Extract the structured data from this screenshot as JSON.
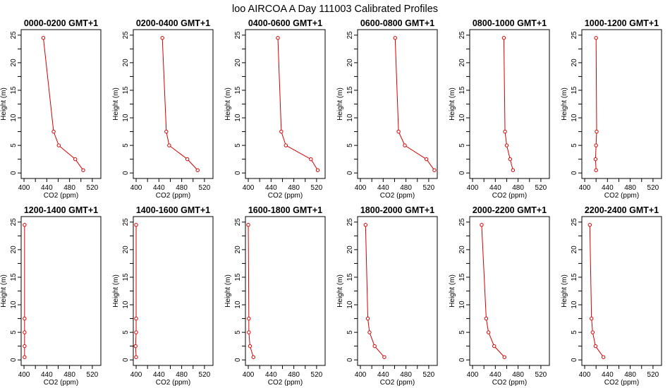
{
  "figure_title": "loo AIRCOA A  Day 111003  Calibrated Profiles",
  "chart_data": [
    {
      "type": "line",
      "title": "0000-0200 GMT+1",
      "xlabel": "CO2 (ppm)",
      "ylabel": "Height (m)",
      "xlim": [
        395,
        535
      ],
      "ylim": [
        -1,
        26
      ],
      "x_ticks": [
        400,
        440,
        480,
        520
      ],
      "y_ticks": [
        0,
        5,
        10,
        15,
        20,
        25
      ],
      "grid": false,
      "color": "#d40000",
      "series": [
        {
          "x": [
            434,
            452,
            461,
            490,
            504
          ],
          "y": [
            24.5,
            7.5,
            5,
            2.5,
            0.5
          ]
        }
      ]
    },
    {
      "type": "line",
      "title": "0200-0400 GMT+1",
      "xlabel": "CO2 (ppm)",
      "ylabel": "Height (m)",
      "xlim": [
        395,
        535
      ],
      "ylim": [
        -1,
        26
      ],
      "x_ticks": [
        400,
        440,
        480,
        520
      ],
      "y_ticks": [
        0,
        5,
        10,
        15,
        20,
        25
      ],
      "grid": false,
      "color": "#d40000",
      "series": [
        {
          "x": [
            446,
            453,
            458,
            490,
            508
          ],
          "y": [
            24.5,
            7.5,
            5,
            2.5,
            0.5
          ]
        }
      ]
    },
    {
      "type": "line",
      "title": "0400-0600 GMT+1",
      "xlabel": "CO2 (ppm)",
      "ylabel": "Height (m)",
      "xlim": [
        395,
        535
      ],
      "ylim": [
        -1,
        26
      ],
      "x_ticks": [
        400,
        440,
        480,
        520
      ],
      "y_ticks": [
        0,
        5,
        10,
        15,
        20,
        25
      ],
      "grid": false,
      "color": "#d40000",
      "series": [
        {
          "x": [
            452,
            458,
            466,
            510,
            522
          ],
          "y": [
            24.5,
            7.5,
            5,
            2.5,
            0.5
          ]
        }
      ]
    },
    {
      "type": "line",
      "title": "0600-0800 GMT+1",
      "xlabel": "CO2 (ppm)",
      "ylabel": "Height (m)",
      "xlim": [
        395,
        535
      ],
      "ylim": [
        -1,
        26
      ],
      "x_ticks": [
        400,
        440,
        480,
        520
      ],
      "y_ticks": [
        0,
        5,
        10,
        15,
        20,
        25
      ],
      "grid": false,
      "color": "#d40000",
      "series": [
        {
          "x": [
            461,
            467,
            478,
            516,
            530
          ],
          "y": [
            24.5,
            7.5,
            5,
            2.5,
            0.5
          ]
        }
      ]
    },
    {
      "type": "line",
      "title": "0800-1000 GMT+1",
      "xlabel": "CO2 (ppm)",
      "ylabel": "Height (m)",
      "xlim": [
        395,
        535
      ],
      "ylim": [
        -1,
        26
      ],
      "x_ticks": [
        400,
        440,
        480,
        520
      ],
      "y_ticks": [
        0,
        5,
        10,
        15,
        20,
        25
      ],
      "grid": false,
      "color": "#d40000",
      "series": [
        {
          "x": [
            455,
            457,
            460,
            466,
            471
          ],
          "y": [
            24.5,
            7.5,
            5,
            2.5,
            0.5
          ]
        }
      ]
    },
    {
      "type": "line",
      "title": "1000-1200 GMT+1",
      "xlabel": "CO2 (ppm)",
      "ylabel": "Height (m)",
      "xlim": [
        395,
        535
      ],
      "ylim": [
        -1,
        26
      ],
      "x_ticks": [
        400,
        440,
        480,
        520
      ],
      "y_ticks": [
        0,
        5,
        10,
        15,
        20,
        25
      ],
      "grid": false,
      "color": "#d40000",
      "series": [
        {
          "x": [
            420,
            421,
            420,
            419,
            420
          ],
          "y": [
            24.5,
            7.5,
            5,
            2.5,
            0.5
          ]
        }
      ]
    },
    {
      "type": "line",
      "title": "1200-1400 GMT+1",
      "xlabel": "CO2 (ppm)",
      "ylabel": "Height (m)",
      "xlim": [
        395,
        535
      ],
      "ylim": [
        -1,
        26
      ],
      "x_ticks": [
        400,
        440,
        480,
        520
      ],
      "y_ticks": [
        0,
        5,
        10,
        15,
        20,
        25
      ],
      "grid": false,
      "color": "#d40000",
      "series": [
        {
          "x": [
            401,
            401,
            401,
            401,
            401
          ],
          "y": [
            24.5,
            7.5,
            5,
            2.5,
            0.5
          ]
        }
      ]
    },
    {
      "type": "line",
      "title": "1400-1600 GMT+1",
      "xlabel": "CO2 (ppm)",
      "ylabel": "Height (m)",
      "xlim": [
        395,
        535
      ],
      "ylim": [
        -1,
        26
      ],
      "x_ticks": [
        400,
        440,
        480,
        520
      ],
      "y_ticks": [
        0,
        5,
        10,
        15,
        20,
        25
      ],
      "grid": false,
      "color": "#d40000",
      "series": [
        {
          "x": [
            400,
            400,
            400,
            399,
            400
          ],
          "y": [
            24.5,
            7.5,
            5,
            2.5,
            0.5
          ]
        }
      ]
    },
    {
      "type": "line",
      "title": "1600-1800 GMT+1",
      "xlabel": "CO2 (ppm)",
      "ylabel": "Height (m)",
      "xlim": [
        395,
        535
      ],
      "ylim": [
        -1,
        26
      ],
      "x_ticks": [
        400,
        440,
        480,
        520
      ],
      "y_ticks": [
        0,
        5,
        10,
        15,
        20,
        25
      ],
      "grid": false,
      "color": "#d40000",
      "series": [
        {
          "x": [
            400,
            401,
            401,
            403,
            409
          ],
          "y": [
            24.5,
            7.5,
            5,
            2.5,
            0.5
          ]
        }
      ]
    },
    {
      "type": "line",
      "title": "1800-2000 GMT+1",
      "xlabel": "CO2 (ppm)",
      "ylabel": "Height (m)",
      "xlim": [
        395,
        535
      ],
      "ylim": [
        -1,
        26
      ],
      "x_ticks": [
        400,
        440,
        480,
        520
      ],
      "y_ticks": [
        0,
        5,
        10,
        15,
        20,
        25
      ],
      "grid": false,
      "color": "#d40000",
      "series": [
        {
          "x": [
            409,
            413,
            416,
            425,
            442
          ],
          "y": [
            24.5,
            7.5,
            5,
            2.5,
            0.5
          ]
        }
      ]
    },
    {
      "type": "line",
      "title": "2000-2200 GMT+1",
      "xlabel": "CO2 (ppm)",
      "ylabel": "Height (m)",
      "xlim": [
        395,
        535
      ],
      "ylim": [
        -1,
        26
      ],
      "x_ticks": [
        400,
        440,
        480,
        520
      ],
      "y_ticks": [
        0,
        5,
        10,
        15,
        20,
        25
      ],
      "grid": false,
      "color": "#d40000",
      "series": [
        {
          "x": [
            416,
            424,
            428,
            438,
            456
          ],
          "y": [
            24.5,
            7.5,
            5,
            2.5,
            0.5
          ]
        }
      ]
    },
    {
      "type": "line",
      "title": "2200-2400 GMT+1",
      "xlabel": "CO2 (ppm)",
      "ylabel": "Height (m)",
      "xlim": [
        395,
        535
      ],
      "ylim": [
        -1,
        26
      ],
      "x_ticks": [
        400,
        440,
        480,
        520
      ],
      "y_ticks": [
        0,
        5,
        10,
        15,
        20,
        25
      ],
      "grid": false,
      "color": "#d40000",
      "series": [
        {
          "x": [
            409,
            412,
            414,
            419,
            433
          ],
          "y": [
            24.5,
            7.5,
            5,
            2.5,
            0.5
          ]
        }
      ]
    }
  ]
}
